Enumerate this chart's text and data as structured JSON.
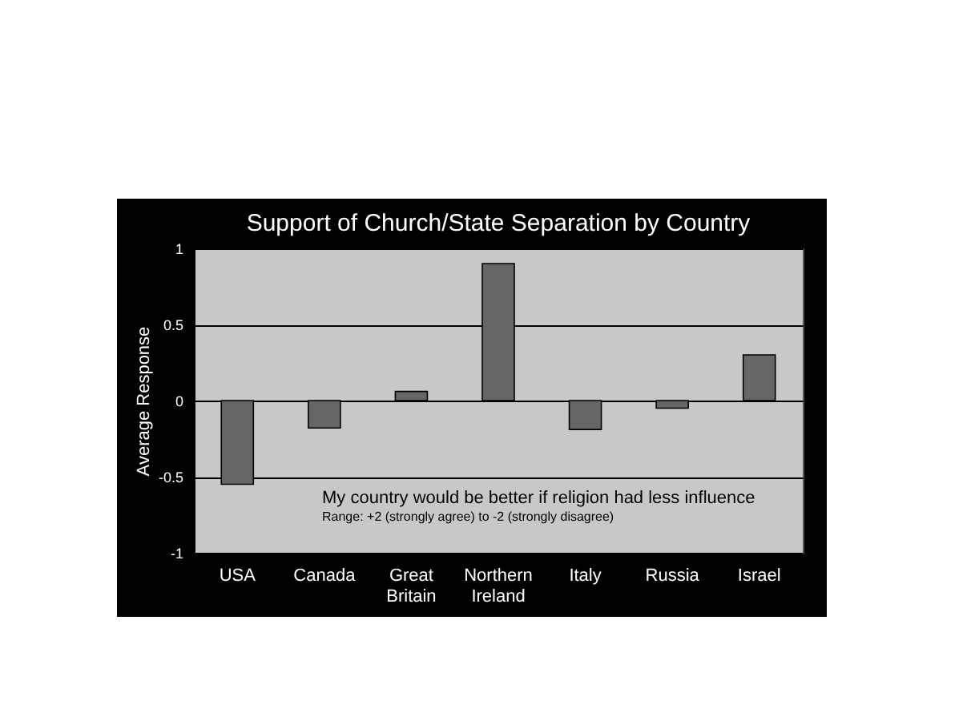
{
  "chart_data": {
    "type": "bar",
    "title": "Support of Church/State Separation by Country",
    "ylabel": "Average Response",
    "categories": [
      "USA",
      "Canada",
      "Great\nBritain",
      "Northern\nIreland",
      "Italy",
      "Russia",
      "Israel"
    ],
    "values": [
      -0.55,
      -0.18,
      0.06,
      0.9,
      -0.19,
      -0.05,
      0.3
    ],
    "color": "#666666",
    "ylim": [
      -1,
      1
    ],
    "yticks": [
      -1,
      -0.5,
      0,
      0.5,
      1
    ],
    "grid": "y",
    "annotations": [
      "My country would be better if religion had less influence",
      "Range: +2 (strongly agree) to -2 (strongly disagree)"
    ]
  }
}
